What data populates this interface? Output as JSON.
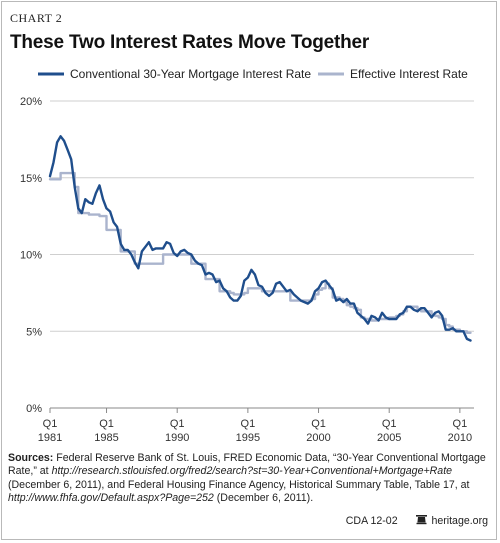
{
  "header": {
    "chart_label": "CHART 2",
    "title": "These Two Interest Rates Move Together"
  },
  "legend": {
    "series1": "Conventional 30-Year Mortgage Interest Rate",
    "series2": "Effective Interest Rate"
  },
  "sources": {
    "label": "Sources:",
    "part1": "Federal Reserve Bank of St. Louis, FRED Economic Data, “30-Year Conventional Mortgage Rate,” at ",
    "url1": "http://research.stlouisfed.org/fred2/search?st=30-Year+Conventional+Mortgage+Rate",
    "part2": " (December 6, 2011), and Federal Housing Finance Agency, Historical Summary Table, Table 17, at ",
    "url2": "http://www.fhfa.gov/Default.aspx?Page=252",
    "part3": " (December 6, 2011)."
  },
  "footer": {
    "code": "CDA 12-02",
    "site": "heritage.org"
  },
  "colors": {
    "series1": "#1f4e8c",
    "series2": "#aab4cd",
    "grid": "#cfcfcf",
    "axis": "#888888"
  },
  "chart_data": {
    "type": "line",
    "title": "These Two Interest Rates Move Together",
    "ylim": [
      0,
      20
    ],
    "xlim": [
      1981.0,
      2011.0
    ],
    "yticks": [
      0,
      5,
      10,
      15,
      20
    ],
    "ytick_labels": [
      "0%",
      "5%",
      "10%",
      "15%",
      "20%"
    ],
    "xticks": [
      {
        "pos": 1981.0,
        "top": "Q1",
        "bottom": "1981"
      },
      {
        "pos": 1985.0,
        "top": "Q1",
        "bottom": "1985"
      },
      {
        "pos": 1990.0,
        "top": "Q1",
        "bottom": "1990"
      },
      {
        "pos": 1995.0,
        "top": "Q1",
        "bottom": "1995"
      },
      {
        "pos": 2000.0,
        "top": "Q1",
        "bottom": "2000"
      },
      {
        "pos": 2005.0,
        "top": "Q1",
        "bottom": "2005"
      },
      {
        "pos": 2010.0,
        "top": "Q1",
        "bottom": "2010"
      }
    ],
    "grid": "horizontal",
    "legend_position": "top",
    "series": [
      {
        "name": "Conventional 30-Year Mortgage Interest Rate",
        "x": [
          1981.0,
          1981.25,
          1981.5,
          1981.75,
          1982.0,
          1982.25,
          1982.5,
          1982.75,
          1983.0,
          1983.25,
          1983.5,
          1983.75,
          1984.0,
          1984.25,
          1984.5,
          1984.75,
          1985.0,
          1985.25,
          1985.5,
          1985.75,
          1986.0,
          1986.25,
          1986.5,
          1986.75,
          1987.0,
          1987.25,
          1987.5,
          1987.75,
          1988.0,
          1988.25,
          1988.5,
          1988.75,
          1989.0,
          1989.25,
          1989.5,
          1989.75,
          1990.0,
          1990.25,
          1990.5,
          1990.75,
          1991.0,
          1991.25,
          1991.5,
          1991.75,
          1992.0,
          1992.25,
          1992.5,
          1992.75,
          1993.0,
          1993.25,
          1993.5,
          1993.75,
          1994.0,
          1994.25,
          1994.5,
          1994.75,
          1995.0,
          1995.25,
          1995.5,
          1995.75,
          1996.0,
          1996.25,
          1996.5,
          1996.75,
          1997.0,
          1997.25,
          1997.5,
          1997.75,
          1998.0,
          1998.25,
          1998.5,
          1998.75,
          1999.0,
          1999.25,
          1999.5,
          1999.75,
          2000.0,
          2000.25,
          2000.5,
          2000.75,
          2001.0,
          2001.25,
          2001.5,
          2001.75,
          2002.0,
          2002.25,
          2002.5,
          2002.75,
          2003.0,
          2003.25,
          2003.5,
          2003.75,
          2004.0,
          2004.25,
          2004.5,
          2004.75,
          2005.0,
          2005.25,
          2005.5,
          2005.75,
          2006.0,
          2006.25,
          2006.5,
          2006.75,
          2007.0,
          2007.25,
          2007.5,
          2007.75,
          2008.0,
          2008.25,
          2008.5,
          2008.75,
          2009.0,
          2009.25,
          2009.5,
          2009.75,
          2010.0,
          2010.25,
          2010.5,
          2010.75
        ],
        "values": [
          15.1,
          16.0,
          17.3,
          17.7,
          17.4,
          16.8,
          16.2,
          14.4,
          13.0,
          12.7,
          13.6,
          13.4,
          13.3,
          14.0,
          14.5,
          13.6,
          13.0,
          12.8,
          12.1,
          11.8,
          10.7,
          10.3,
          10.3,
          10.0,
          9.5,
          9.1,
          10.2,
          10.5,
          10.8,
          10.3,
          10.4,
          10.4,
          10.4,
          10.8,
          10.7,
          10.1,
          9.9,
          10.2,
          10.3,
          10.1,
          10.0,
          9.6,
          9.4,
          9.3,
          8.7,
          8.8,
          8.7,
          8.2,
          8.3,
          7.8,
          7.6,
          7.2,
          7.0,
          7.0,
          7.3,
          8.3,
          8.5,
          9.0,
          8.7,
          8.0,
          7.9,
          7.5,
          7.3,
          7.5,
          8.1,
          8.2,
          7.9,
          7.6,
          7.7,
          7.4,
          7.2,
          7.0,
          6.9,
          6.8,
          7.0,
          7.6,
          7.8,
          8.2,
          8.3,
          8.0,
          7.7,
          7.0,
          7.1,
          6.9,
          7.1,
          6.8,
          6.8,
          6.2,
          6.0,
          5.8,
          5.5,
          6.0,
          5.9,
          5.7,
          6.2,
          5.9,
          5.8,
          5.8,
          5.8,
          6.1,
          6.2,
          6.6,
          6.6,
          6.4,
          6.3,
          6.5,
          6.5,
          6.2,
          5.9,
          6.2,
          6.3,
          6.0,
          5.1,
          5.1,
          5.2,
          5.0,
          5.0,
          5.0,
          4.5,
          4.4
        ]
      },
      {
        "name": "Effective Interest Rate",
        "x": [
          1981.0,
          1981.25,
          1981.5,
          1981.75,
          1982.0,
          1982.25,
          1982.5,
          1982.75,
          1983.0,
          1983.25,
          1983.5,
          1983.75,
          1984.0,
          1984.25,
          1984.5,
          1984.75,
          1985.0,
          1985.25,
          1985.5,
          1985.75,
          1986.0,
          1986.25,
          1986.5,
          1986.75,
          1987.0,
          1987.25,
          1987.5,
          1987.75,
          1988.0,
          1988.25,
          1988.5,
          1988.75,
          1989.0,
          1989.25,
          1989.5,
          1989.75,
          1990.0,
          1990.25,
          1990.5,
          1990.75,
          1991.0,
          1991.25,
          1991.5,
          1991.75,
          1992.0,
          1992.25,
          1992.5,
          1992.75,
          1993.0,
          1993.25,
          1993.5,
          1993.75,
          1994.0,
          1994.25,
          1994.5,
          1994.75,
          1995.0,
          1995.25,
          1995.5,
          1995.75,
          1996.0,
          1996.25,
          1996.5,
          1996.75,
          1997.0,
          1997.25,
          1997.5,
          1997.75,
          1998.0,
          1998.25,
          1998.5,
          1998.75,
          1999.0,
          1999.25,
          1999.5,
          1999.75,
          2000.0,
          2000.25,
          2000.5,
          2000.75,
          2001.0,
          2001.25,
          2001.5,
          2001.75,
          2002.0,
          2002.25,
          2002.5,
          2002.75,
          2003.0,
          2003.25,
          2003.5,
          2003.75,
          2004.0,
          2004.25,
          2004.5,
          2004.75,
          2005.0,
          2005.25,
          2005.5,
          2005.75,
          2006.0,
          2006.25,
          2006.5,
          2006.75,
          2007.0,
          2007.25,
          2007.5,
          2007.75,
          2008.0,
          2008.25,
          2008.5,
          2008.75,
          2009.0,
          2009.25,
          2009.5,
          2009.75,
          2010.0,
          2010.25,
          2010.5,
          2010.75
        ],
        "values": [
          14.9,
          14.9,
          14.9,
          15.3,
          15.3,
          15.3,
          15.3,
          14.4,
          12.7,
          12.7,
          12.7,
          12.6,
          12.6,
          12.6,
          12.5,
          12.5,
          11.6,
          11.6,
          11.6,
          11.6,
          10.2,
          10.2,
          10.2,
          10.2,
          9.4,
          9.4,
          9.4,
          9.4,
          9.4,
          9.4,
          9.4,
          9.4,
          10.0,
          10.0,
          10.0,
          10.0,
          10.0,
          10.0,
          10.0,
          10.0,
          9.4,
          9.4,
          9.4,
          9.4,
          8.4,
          8.4,
          8.4,
          8.4,
          7.6,
          7.6,
          7.6,
          7.5,
          7.4,
          7.4,
          7.4,
          7.5,
          7.8,
          7.8,
          7.8,
          7.8,
          7.6,
          7.6,
          7.6,
          7.6,
          7.6,
          7.6,
          7.6,
          7.6,
          7.0,
          7.0,
          7.0,
          7.0,
          7.0,
          7.0,
          7.1,
          7.4,
          7.7,
          7.8,
          8.1,
          7.8,
          7.2,
          7.2,
          7.1,
          6.9,
          6.7,
          6.6,
          6.5,
          6.4,
          5.9,
          5.8,
          5.8,
          5.7,
          5.7,
          5.8,
          5.8,
          5.8,
          5.9,
          5.9,
          6.0,
          6.1,
          6.3,
          6.6,
          6.6,
          6.6,
          6.4,
          6.3,
          6.3,
          6.3,
          6.1,
          6.0,
          5.9,
          5.8,
          5.4,
          5.3,
          5.1,
          5.1,
          5.0,
          5.0,
          4.9,
          4.9
        ]
      }
    ]
  }
}
